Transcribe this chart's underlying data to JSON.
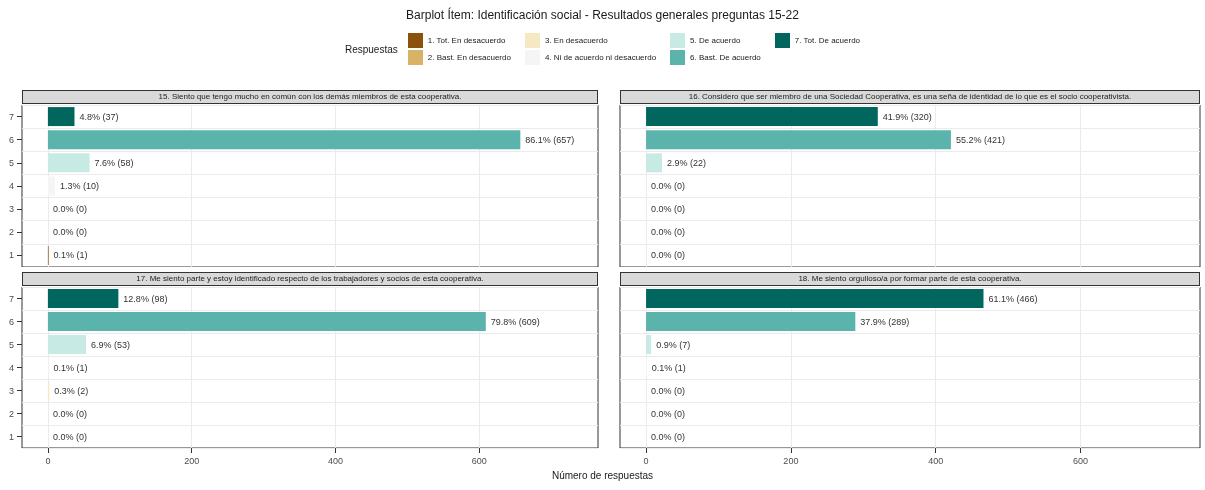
{
  "chart_data": [
    {
      "type": "bar",
      "orientation": "horizontal",
      "stacked": true,
      "title": "Barplot Ítem: Identificación social - Resultados generales preguntas 15-22",
      "subtitle": "15. Siento que tengo mucho en común con los demás miembros de esta cooperativa.",
      "legend_title": "Respuestas",
      "legend": "top",
      "grid": true,
      "tick_labels": "y",
      "categories": [
        "7",
        "6",
        "5",
        "4",
        "3",
        "2",
        "1"
      ],
      "xlim": [
        -36,
        765
      ],
      "xticks": [
        0,
        200,
        400,
        600
      ],
      "series": [
        {
          "name": "1. Tot. En desacuerdo",
          "color": "#8c510a",
          "values": [
            null,
            null,
            null,
            null,
            null,
            null,
            1
          ],
          "value_labels": [
            null,
            null,
            null,
            null,
            null,
            null,
            "0.1% (1)"
          ]
        },
        {
          "name": "2. Bast. En desacuerdo",
          "color": "#d8b365",
          "values": [
            null,
            null,
            null,
            null,
            null,
            0,
            null
          ],
          "value_labels": [
            null,
            null,
            null,
            null,
            null,
            "0.0% (0)",
            null
          ]
        },
        {
          "name": "3. En desacuerdo",
          "color": "#f6e8c3",
          "values": [
            null,
            null,
            null,
            null,
            0,
            null,
            null
          ],
          "value_labels": [
            null,
            null,
            null,
            null,
            "0.0% (0)",
            null,
            null
          ]
        },
        {
          "name": "4. Ni de acuerdo ni desacuerdo",
          "color": "#f5f5f5",
          "values": [
            null,
            null,
            null,
            10,
            null,
            null,
            null
          ],
          "value_labels": [
            null,
            null,
            null,
            "1.3% (10)",
            null,
            null,
            null
          ]
        },
        {
          "name": "5. De acuerdo",
          "color": "#c7eae5",
          "values": [
            null,
            null,
            58,
            null,
            null,
            null,
            null
          ],
          "value_labels": [
            null,
            null,
            "7.6% (58)",
            null,
            null,
            null,
            null
          ]
        },
        {
          "name": "6. Bast. De acuerdo",
          "color": "#5ab4ac",
          "values": [
            null,
            657,
            null,
            null,
            null,
            null,
            null
          ],
          "value_labels": [
            null,
            "86.1% (657)",
            null,
            null,
            null,
            null,
            null
          ]
        },
        {
          "name": "7. Tot. De acuerdo",
          "color": "#01665e",
          "values": [
            37,
            null,
            null,
            null,
            null,
            null,
            null
          ],
          "value_labels": [
            "4.8% (37)",
            null,
            null,
            null,
            null,
            null,
            null
          ]
        }
      ]
    },
    {
      "type": "bar",
      "orientation": "horizontal",
      "stacked": true,
      "subtitle": "16. Considero que ser miembro de una Sociedad Cooperativa, es una seña de identidad de lo que es el socio cooperativista.",
      "grid": true,
      "tick_labels": false,
      "categories": [
        "7",
        "6",
        "5",
        "4",
        "3",
        "2",
        "1"
      ],
      "xlim": [
        -36,
        765
      ],
      "xticks": [
        0,
        200,
        400,
        600
      ],
      "series": [
        {
          "color": "#8c510a",
          "values": [
            null,
            null,
            null,
            null,
            null,
            null,
            0
          ],
          "value_labels": [
            null,
            null,
            null,
            null,
            null,
            null,
            "0.0% (0)"
          ]
        },
        {
          "color": "#d8b365",
          "values": [
            null,
            null,
            null,
            null,
            null,
            0,
            null
          ],
          "value_labels": [
            null,
            null,
            null,
            null,
            null,
            "0.0% (0)",
            null
          ]
        },
        {
          "color": "#f6e8c3",
          "values": [
            null,
            null,
            null,
            null,
            0,
            null,
            null
          ],
          "value_labels": [
            null,
            null,
            null,
            null,
            "0.0% (0)",
            null,
            null
          ]
        },
        {
          "color": "#f5f5f5",
          "values": [
            null,
            null,
            null,
            0,
            null,
            null,
            null
          ],
          "value_labels": [
            null,
            null,
            null,
            "0.0% (0)",
            null,
            null,
            null
          ]
        },
        {
          "color": "#c7eae5",
          "values": [
            null,
            null,
            22,
            null,
            null,
            null,
            null
          ],
          "value_labels": [
            null,
            null,
            "2.9% (22)",
            null,
            null,
            null,
            null
          ]
        },
        {
          "color": "#5ab4ac",
          "values": [
            null,
            421,
            null,
            null,
            null,
            null,
            null
          ],
          "value_labels": [
            null,
            "55.2% (421)",
            null,
            null,
            null,
            null,
            null
          ]
        },
        {
          "color": "#01665e",
          "values": [
            320,
            null,
            null,
            null,
            null,
            null,
            null
          ],
          "value_labels": [
            "41.9% (320)",
            null,
            null,
            null,
            null,
            null,
            null
          ]
        }
      ]
    },
    {
      "type": "bar",
      "orientation": "horizontal",
      "stacked": true,
      "subtitle": "17. Me siento parte y estoy identificado respecto de los trabajadores y socios de esta cooperativa.",
      "xlabel": "Número de respuestas",
      "grid": true,
      "categories": [
        "7",
        "6",
        "5",
        "4",
        "3",
        "2",
        "1"
      ],
      "xlim": [
        -36,
        765
      ],
      "xticks": [
        0,
        200,
        400,
        600
      ],
      "series": [
        {
          "color": "#8c510a",
          "values": [
            null,
            null,
            null,
            null,
            null,
            null,
            0
          ],
          "value_labels": [
            null,
            null,
            null,
            null,
            null,
            null,
            "0.0% (0)"
          ]
        },
        {
          "color": "#d8b365",
          "values": [
            null,
            null,
            null,
            null,
            null,
            0,
            null
          ],
          "value_labels": [
            null,
            null,
            null,
            null,
            null,
            "0.0% (0)",
            null
          ]
        },
        {
          "color": "#f6e8c3",
          "values": [
            null,
            null,
            null,
            null,
            2,
            null,
            null
          ],
          "value_labels": [
            null,
            null,
            null,
            null,
            "0.3% (2)",
            null,
            null
          ]
        },
        {
          "color": "#f5f5f5",
          "values": [
            null,
            null,
            null,
            1,
            null,
            null,
            null
          ],
          "value_labels": [
            null,
            null,
            null,
            "0.1% (1)",
            null,
            null,
            null
          ]
        },
        {
          "color": "#c7eae5",
          "values": [
            null,
            null,
            53,
            null,
            null,
            null,
            null
          ],
          "value_labels": [
            null,
            null,
            "6.9% (53)",
            null,
            null,
            null,
            null
          ]
        },
        {
          "color": "#5ab4ac",
          "values": [
            null,
            609,
            null,
            null,
            null,
            null,
            null
          ],
          "value_labels": [
            null,
            "79.8% (609)",
            null,
            null,
            null,
            null,
            null
          ]
        },
        {
          "color": "#01665e",
          "values": [
            98,
            null,
            null,
            null,
            null,
            null,
            null
          ],
          "value_labels": [
            "12.8% (98)",
            null,
            null,
            null,
            null,
            null,
            null
          ]
        }
      ]
    },
    {
      "type": "bar",
      "orientation": "horizontal",
      "stacked": true,
      "subtitle": "18. Me siento orgulloso/a por formar parte de esta cooperativa.",
      "grid": true,
      "tick_labels": "x",
      "categories": [
        "7",
        "6",
        "5",
        "4",
        "3",
        "2",
        "1"
      ],
      "xlim": [
        -36,
        765
      ],
      "xticks": [
        0,
        200,
        400,
        600
      ],
      "series": [
        {
          "color": "#8c510a",
          "values": [
            null,
            null,
            null,
            null,
            null,
            null,
            0
          ],
          "value_labels": [
            null,
            null,
            null,
            null,
            null,
            null,
            "0.0% (0)"
          ]
        },
        {
          "color": "#d8b365",
          "values": [
            null,
            null,
            null,
            null,
            null,
            0,
            null
          ],
          "value_labels": [
            null,
            null,
            null,
            null,
            null,
            "0.0% (0)",
            null
          ]
        },
        {
          "color": "#f6e8c3",
          "values": [
            null,
            null,
            null,
            null,
            0,
            null,
            null
          ],
          "value_labels": [
            null,
            null,
            null,
            null,
            "0.0% (0)",
            null,
            null
          ]
        },
        {
          "color": "#f5f5f5",
          "values": [
            null,
            null,
            null,
            1,
            null,
            null,
            null
          ],
          "value_labels": [
            null,
            null,
            null,
            "0.1% (1)",
            null,
            null,
            null
          ]
        },
        {
          "color": "#c7eae5",
          "values": [
            null,
            null,
            7,
            null,
            null,
            null,
            null
          ],
          "value_labels": [
            null,
            null,
            "0.9% (7)",
            null,
            null,
            null,
            null
          ]
        },
        {
          "color": "#5ab4ac",
          "values": [
            null,
            289,
            null,
            null,
            null,
            null,
            null
          ],
          "value_labels": [
            null,
            "37.9% (289)",
            null,
            null,
            null,
            null,
            null
          ]
        },
        {
          "color": "#01665e",
          "values": [
            466,
            null,
            null,
            null,
            null,
            null,
            null
          ],
          "value_labels": [
            "61.1% (466)",
            null,
            null,
            null,
            null,
            null,
            null
          ]
        }
      ]
    }
  ]
}
